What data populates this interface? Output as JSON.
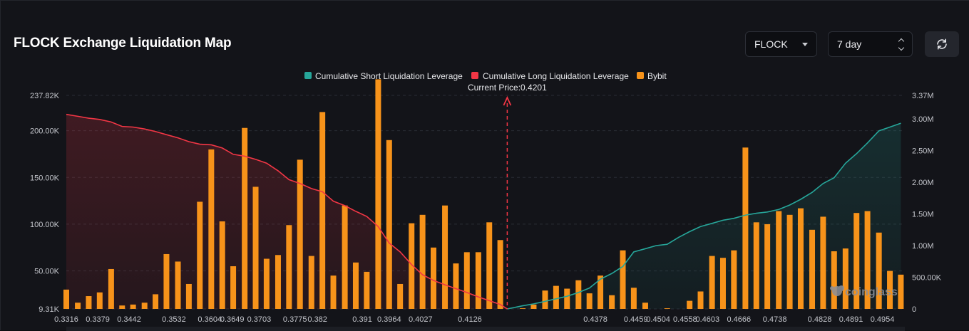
{
  "header": {
    "title": "FLOCK Exchange Liquidation Map",
    "symbol": "FLOCK",
    "range": "7 day"
  },
  "colors": {
    "short": "#26a69a",
    "long": "#f23645",
    "bybit": "#f7931a",
    "grid": "#2a2d35"
  },
  "icons": {
    "symbol_dropdown": "caret-down-icon",
    "range_dropdown": "up-down-icon",
    "refresh": "refresh-icon",
    "watermark": "coinglass-logo"
  },
  "watermark": "coinglass",
  "chart_data": {
    "type": "bar",
    "legend": [
      "Cumulative Short Liquidation Leverage",
      "Cumulative Long Liquidation Leverage",
      "Bybit"
    ],
    "legend_position": "top-center",
    "current_price_label": "Current Price:0.4201",
    "current_price": 0.4201,
    "grid": true,
    "x_range": [
      0.3316,
      0.4999
    ],
    "x_tick_labels": [
      "0.3316",
      "0.3379",
      "0.3442",
      "0.3532",
      "0.3604",
      "0.3649",
      "0.3703",
      "0.3775",
      "0.382",
      "0.391",
      "0.3964",
      "0.4027",
      "0.4126",
      "0.4378",
      "0.4459",
      "0.4504",
      "0.4558",
      "0.4603",
      "0.4666",
      "0.4738",
      "0.4828",
      "0.4891",
      "0.4954"
    ],
    "x_tick_values": [
      0.3316,
      0.3379,
      0.3442,
      0.3532,
      0.3604,
      0.3649,
      0.3703,
      0.3775,
      0.382,
      0.391,
      0.3964,
      0.4027,
      0.4126,
      0.4378,
      0.4459,
      0.4504,
      0.4558,
      0.4603,
      0.4666,
      0.4738,
      0.4828,
      0.4891,
      0.4954
    ],
    "y_left": {
      "range": [
        9310,
        237820
      ],
      "tick_values": [
        9310,
        50000,
        100000,
        150000,
        200000,
        237820
      ],
      "tick_labels": [
        "9.31K",
        "50.00K",
        "100.00K",
        "150.00K",
        "200.00K",
        "237.82K"
      ]
    },
    "y_right": {
      "range": [
        0,
        3370000
      ],
      "tick_values": [
        0,
        500000,
        1000000,
        1500000,
        2000000,
        2500000,
        3000000,
        3370000
      ],
      "tick_labels": [
        "0",
        "500.00K",
        "1.00M",
        "1.50M",
        "2.00M",
        "2.50M",
        "3.00M",
        "3.37M"
      ]
    },
    "bybit": {
      "x": [
        0.3316,
        0.3339,
        0.3361,
        0.3383,
        0.3406,
        0.3428,
        0.345,
        0.3473,
        0.3495,
        0.3517,
        0.354,
        0.3562,
        0.3584,
        0.3607,
        0.3629,
        0.3651,
        0.3674,
        0.3696,
        0.3718,
        0.3741,
        0.3763,
        0.3785,
        0.3808,
        0.383,
        0.3852,
        0.3875,
        0.3897,
        0.3919,
        0.3942,
        0.3964,
        0.3986,
        0.4009,
        0.4031,
        0.4053,
        0.4076,
        0.4098,
        0.412,
        0.4143,
        0.4165,
        0.4187,
        0.4232,
        0.4254,
        0.4277,
        0.4299,
        0.4321,
        0.4344,
        0.4366,
        0.4388,
        0.4411,
        0.4433,
        0.4455,
        0.4478,
        0.45,
        0.4522,
        0.4545,
        0.4567,
        0.4589,
        0.4612,
        0.4634,
        0.4656,
        0.4679,
        0.4701,
        0.4723,
        0.4746,
        0.4768,
        0.479,
        0.4813,
        0.4835,
        0.4857,
        0.488,
        0.4902,
        0.4924,
        0.4947,
        0.4969,
        0.4991
      ],
      "values": [
        30000,
        16000,
        23000,
        27000,
        52000,
        13000,
        14000,
        16000,
        25000,
        68000,
        60000,
        36000,
        124000,
        180000,
        103000,
        55000,
        203000,
        140000,
        63000,
        67000,
        99000,
        169000,
        66000,
        220000,
        45000,
        120000,
        59000,
        49000,
        255000,
        190000,
        36000,
        101000,
        110000,
        75000,
        120000,
        58000,
        70000,
        70000,
        102000,
        83000,
        10000,
        14000,
        29000,
        34000,
        31000,
        40000,
        26000,
        45000,
        24000,
        72000,
        32000,
        16000,
        8000,
        10000,
        9000,
        18000,
        28000,
        66000,
        64000,
        72000,
        182000,
        102000,
        100000,
        114000,
        110000,
        117000,
        94000,
        108000,
        71000,
        74000,
        112000,
        114000,
        91000,
        50000,
        46000
      ]
    },
    "cumulative_long": {
      "x": [
        0.3316,
        0.3339,
        0.3361,
        0.3383,
        0.3406,
        0.3428,
        0.345,
        0.3473,
        0.3495,
        0.3517,
        0.354,
        0.3562,
        0.3584,
        0.3607,
        0.3629,
        0.3651,
        0.3674,
        0.3696,
        0.3718,
        0.3741,
        0.3763,
        0.3785,
        0.3808,
        0.383,
        0.3852,
        0.3875,
        0.3897,
        0.3919,
        0.3942,
        0.3964,
        0.3986,
        0.4009,
        0.4031,
        0.4053,
        0.4076,
        0.4098,
        0.412,
        0.4143,
        0.4165,
        0.4187,
        0.4201
      ],
      "values": [
        3070000,
        3040000,
        3010000,
        2990000,
        2950000,
        2880000,
        2870000,
        2840000,
        2800000,
        2750000,
        2700000,
        2640000,
        2600000,
        2590000,
        2540000,
        2440000,
        2410000,
        2360000,
        2300000,
        2180000,
        2040000,
        1980000,
        1900000,
        1850000,
        1700000,
        1630000,
        1540000,
        1460000,
        1300000,
        1040000,
        900000,
        700000,
        540000,
        450000,
        380000,
        320000,
        260000,
        190000,
        130000,
        70000,
        0
      ]
    },
    "cumulative_short": {
      "x": [
        0.4201,
        0.4232,
        0.4254,
        0.4277,
        0.4299,
        0.4321,
        0.4344,
        0.4366,
        0.4388,
        0.4411,
        0.4433,
        0.4455,
        0.4478,
        0.45,
        0.4522,
        0.4545,
        0.4567,
        0.4589,
        0.4612,
        0.4634,
        0.4656,
        0.4679,
        0.4701,
        0.4723,
        0.4746,
        0.4768,
        0.479,
        0.4813,
        0.4835,
        0.4857,
        0.488,
        0.4902,
        0.4924,
        0.4947,
        0.4969,
        0.4991
      ],
      "values": [
        0,
        50000,
        80000,
        120000,
        160000,
        200000,
        260000,
        330000,
        470000,
        560000,
        670000,
        900000,
        950000,
        1000000,
        1020000,
        1130000,
        1220000,
        1300000,
        1350000,
        1400000,
        1430000,
        1480000,
        1510000,
        1530000,
        1570000,
        1640000,
        1730000,
        1840000,
        1980000,
        2070000,
        2300000,
        2450000,
        2620000,
        2810000,
        2870000,
        2930000
      ]
    }
  }
}
